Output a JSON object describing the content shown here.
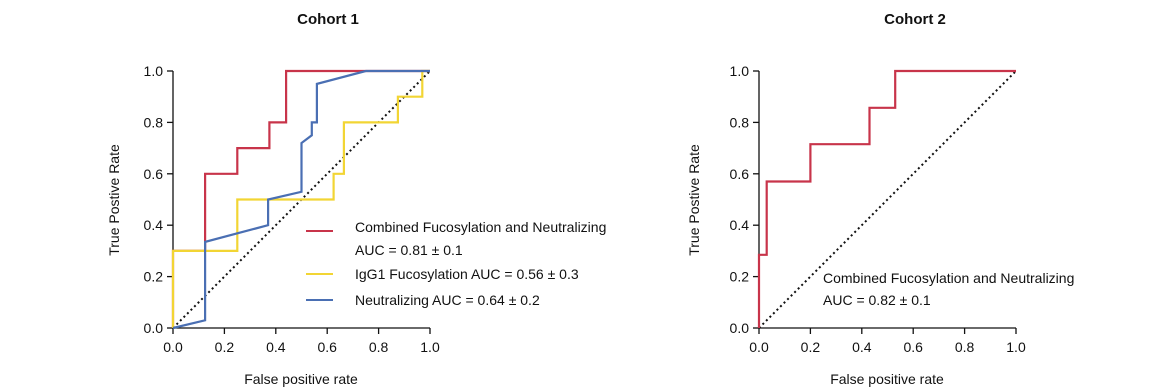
{
  "chart_data": [
    {
      "type": "line",
      "title": "Cohort 1",
      "xlabel": "False positive rate",
      "ylabel": "True Postive Rate",
      "xlim": [
        0,
        1
      ],
      "ylim": [
        0,
        1
      ],
      "xticks": [
        "0.0",
        "0.2",
        "0.4",
        "0.6",
        "0.8",
        "1.0"
      ],
      "yticks": [
        "0.0",
        "0.2",
        "0.4",
        "0.6",
        "0.8",
        "1.0"
      ],
      "grid": false,
      "legend_position": "lower-right",
      "diagonal": {
        "x": [
          0,
          1
        ],
        "y": [
          0,
          1
        ],
        "style": "dotted",
        "color": "#111111"
      },
      "series": [
        {
          "name": "Combined Fucosylation and Neutralizing",
          "name_line2": "AUC = 0.81 ± 0.1",
          "color": "#c8344a",
          "x": [
            0,
            0,
            0.125,
            0.125,
            0.25,
            0.25,
            0.375,
            0.375,
            0.44,
            0.44,
            1.0
          ],
          "y": [
            0,
            0.3,
            0.3,
            0.6,
            0.6,
            0.7,
            0.7,
            0.8,
            0.8,
            1.0,
            1.0
          ]
        },
        {
          "name": "IgG1 Fucosylation AUC = 0.56 ± 0.3",
          "color": "#f2d534",
          "x": [
            0,
            0,
            0.25,
            0.25,
            0.625,
            0.625,
            0.665,
            0.665,
            0.875,
            0.875,
            0.97,
            0.97,
            1.0
          ],
          "y": [
            0,
            0.3,
            0.3,
            0.5,
            0.5,
            0.6,
            0.6,
            0.8,
            0.8,
            0.9,
            0.9,
            1.0,
            1.0
          ]
        },
        {
          "name": "Neutralizing AUC  = 0.64 ± 0.2",
          "color": "#4a6fb3",
          "x": [
            0,
            0.125,
            0.125,
            0.37,
            0.37,
            0.5,
            0.5,
            0.54,
            0.54,
            0.56,
            0.56,
            0.75,
            1.0
          ],
          "y": [
            0,
            0.03,
            0.335,
            0.4,
            0.5,
            0.53,
            0.72,
            0.75,
            0.8,
            0.8,
            0.95,
            1.0,
            1.0
          ]
        }
      ]
    },
    {
      "type": "line",
      "title": "Cohort 2",
      "xlabel": "False positive rate",
      "ylabel": "True Postive Rate",
      "xlim": [
        0,
        1
      ],
      "ylim": [
        0,
        1
      ],
      "xticks": [
        "0.0",
        "0.2",
        "0.4",
        "0.6",
        "0.8",
        "1.0"
      ],
      "yticks": [
        "0.0",
        "0.2",
        "0.4",
        "0.6",
        "0.8",
        "1.0"
      ],
      "grid": false,
      "legend_position": "lower-right",
      "diagonal": {
        "x": [
          0,
          1
        ],
        "y": [
          0,
          1
        ],
        "style": "dotted",
        "color": "#111111"
      },
      "annotation": {
        "line1": "Combined Fucosylation and Neutralizing",
        "line2": "AUC = 0.82 ± 0.1"
      },
      "series": [
        {
          "name": "",
          "color": "#c8344a",
          "x": [
            0,
            0,
            0.03,
            0.03,
            0.2,
            0.2,
            0.43,
            0.43,
            0.53,
            0.53,
            1.0
          ],
          "y": [
            0,
            0.285,
            0.285,
            0.57,
            0.57,
            0.715,
            0.715,
            0.857,
            0.857,
            1.0,
            1.0
          ]
        }
      ]
    }
  ]
}
